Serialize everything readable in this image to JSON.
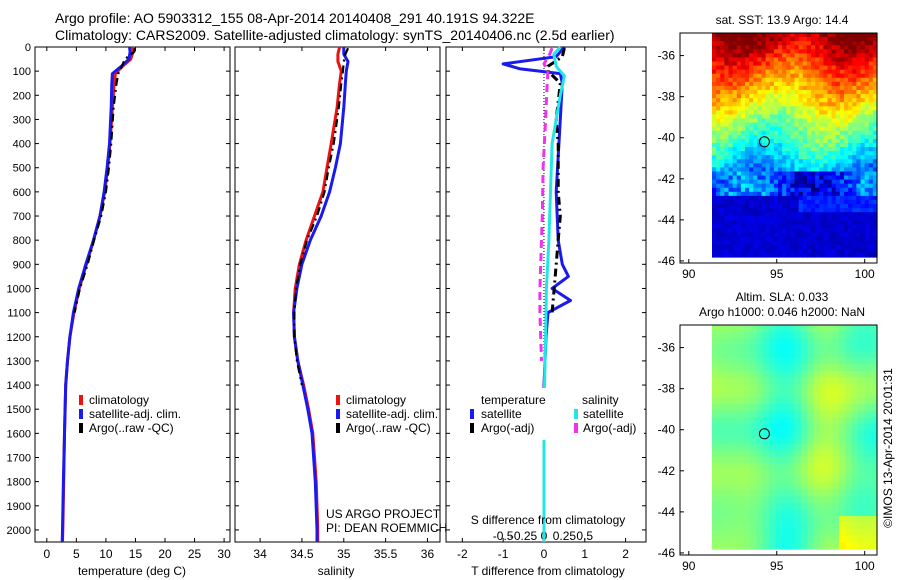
{
  "header": {
    "title_line1": "Argo profile: AO 5903312_155 08-Apr-2014 20140408_291 40.191S 94.322E",
    "title_line2": "Climatology: CARS2009. Satellite-adjusted climatology: synTS_20140406.nc (2.5d earlier)"
  },
  "colors": {
    "climatology": "#ee1111",
    "satellite": "#1a1aee",
    "argo": "#000000",
    "cyan": "#22e6e6",
    "magenta": "#ee33ee"
  },
  "depth_ticks": [
    "0",
    "100",
    "200",
    "300",
    "400",
    "500",
    "600",
    "700",
    "800",
    "900",
    "1000",
    "1100",
    "1200",
    "1300",
    "1400",
    "1500",
    "1600",
    "1700",
    "1800",
    "1900",
    "2000"
  ],
  "chart_data": [
    {
      "type": "line",
      "name": "temperature",
      "xlabel": "temperature (deg C)",
      "xlim": [
        -2,
        31
      ],
      "xticks": [
        0,
        5,
        10,
        15,
        20,
        25,
        30
      ],
      "ylim": [
        2050,
        0
      ],
      "legend": [
        "climatology",
        "satellite-adj. clim.",
        "Argo(..raw -QC)"
      ],
      "series": [
        {
          "name": "climatology",
          "depth": [
            0,
            20,
            50,
            80,
            110,
            150,
            250,
            400,
            500,
            600,
            700,
            800,
            900,
            1000,
            1100,
            1200,
            1300,
            1400,
            1600,
            1800,
            2000,
            2050
          ],
          "values": [
            14.5,
            14.6,
            14.2,
            12.8,
            11.6,
            11.4,
            11.1,
            10.7,
            10.3,
            9.8,
            9.0,
            7.9,
            6.7,
            5.5,
            4.6,
            3.9,
            3.5,
            3.2,
            3.0,
            2.85,
            2.7,
            2.65
          ]
        },
        {
          "name": "satellite-adj. clim.",
          "depth": [
            0,
            20,
            50,
            80,
            110,
            150,
            250,
            400,
            500,
            600,
            700,
            800,
            900,
            1000,
            1100,
            1200,
            1300,
            1400,
            1600,
            1800,
            2000,
            2050
          ],
          "values": [
            14.0,
            14.1,
            13.9,
            12.6,
            11.1,
            11.0,
            10.9,
            10.6,
            10.2,
            9.7,
            9.0,
            7.9,
            6.6,
            5.4,
            4.5,
            3.9,
            3.5,
            3.2,
            3.0,
            2.8,
            2.65,
            2.6
          ]
        },
        {
          "name": "Argo(..raw -QC)",
          "depth": [
            5,
            20,
            50,
            80,
            110,
            150,
            250,
            400,
            500,
            600,
            700,
            800,
            900,
            1000,
            1100
          ],
          "values": [
            14.9,
            14.8,
            13.2,
            12.7,
            12.1,
            11.8,
            11.3,
            10.9,
            10.5,
            10.0,
            9.2,
            8.0,
            6.9,
            5.6,
            4.7
          ]
        }
      ]
    },
    {
      "type": "line",
      "name": "salinity",
      "xlabel": "salinity",
      "xlim": [
        33.7,
        36.15
      ],
      "xticks": [
        34,
        34.5,
        35,
        35.5,
        36
      ],
      "ylim": [
        2050,
        0
      ],
      "legend": [
        "climatology",
        "satellite-adj. clim.",
        "Argo(..raw -QC)"
      ],
      "series": [
        {
          "name": "climatology",
          "depth": [
            0,
            30,
            60,
            100,
            150,
            250,
            400,
            500,
            600,
            700,
            800,
            900,
            1000,
            1100,
            1200,
            1300,
            1400,
            1500,
            1600,
            1800,
            2000,
            2050
          ],
          "values": [
            34.95,
            34.93,
            34.93,
            34.97,
            34.95,
            34.92,
            34.85,
            34.8,
            34.75,
            34.65,
            34.55,
            34.47,
            34.42,
            34.4,
            34.41,
            34.45,
            34.52,
            34.58,
            34.63,
            34.67,
            34.69,
            34.69
          ]
        },
        {
          "name": "satellite-adj. clim.",
          "depth": [
            0,
            30,
            60,
            100,
            150,
            250,
            400,
            500,
            600,
            700,
            800,
            900,
            1000,
            1100,
            1200,
            1300,
            1400,
            1500,
            1600,
            1800,
            2000,
            2050
          ],
          "values": [
            35.0,
            35.0,
            35.05,
            35.03,
            35.02,
            35.0,
            34.96,
            34.9,
            34.83,
            34.73,
            34.6,
            34.5,
            34.44,
            34.4,
            34.41,
            34.45,
            34.51,
            34.57,
            34.62,
            34.66,
            34.68,
            34.68
          ]
        },
        {
          "name": "Argo(..raw -QC)",
          "depth": [
            5,
            30,
            60,
            100,
            150,
            250,
            400,
            500,
            600,
            700,
            800,
            900,
            1000,
            1100,
            1200,
            1300,
            1400
          ],
          "values": [
            35.05,
            35.02,
            35.0,
            34.99,
            34.97,
            34.94,
            34.88,
            34.82,
            34.77,
            34.68,
            34.56,
            34.48,
            34.43,
            34.41,
            34.41,
            34.44,
            34.5
          ]
        }
      ]
    },
    {
      "type": "line",
      "name": "difference from climatology",
      "xlabel": "T difference from climatology",
      "xlabel_top": "S difference from climatology",
      "xlim": [
        -2.4,
        2.5
      ],
      "xticks": [
        -2,
        -1,
        0,
        1,
        2
      ],
      "xticks_labels": [
        "-2",
        "-1",
        "0",
        "1",
        "2"
      ],
      "s_ticks": [
        -0.5,
        -0.25,
        0,
        0.25,
        0.5
      ],
      "s_ticks_labels": [
        "-0.5",
        "-0.25",
        "0",
        "0.25",
        "0.5"
      ],
      "ylim": [
        2050,
        0
      ],
      "legend_temperature": "temperature",
      "legend_salinity": "salinity",
      "legend_satellite": "satellite",
      "legend_argo": "Argo(-adj)",
      "series": [
        {
          "name": "temperature satellite",
          "depth": [
            0,
            40,
            70,
            90,
            110,
            150,
            300,
            600,
            800,
            900,
            950,
            1000,
            1050,
            1100,
            1200,
            1400,
            1700,
            2000,
            2050
          ],
          "values": [
            0.5,
            0.3,
            -1.0,
            -0.6,
            0.4,
            0.45,
            0.4,
            0.3,
            0.35,
            0.45,
            0.6,
            0.2,
            0.65,
            0.1,
            0.05,
            0.0,
            0.0,
            0.0,
            0.0
          ]
        },
        {
          "name": "temperature Argo(-adj)",
          "depth": [
            5,
            40,
            80,
            100,
            150,
            300,
            400,
            600,
            700,
            800,
            900,
            1000,
            1100
          ],
          "values": [
            0.5,
            0.45,
            0.1,
            0.1,
            0.4,
            0.3,
            0.35,
            0.35,
            0.4,
            0.35,
            0.3,
            0.25,
            0.2
          ]
        },
        {
          "name": "salinity satellite",
          "depth": [
            0,
            30,
            80,
            120,
            200,
            400,
            600,
            800,
            1000,
            1200,
            1500,
            1800,
            2000,
            2050
          ],
          "values": [
            0.2,
            0.12,
            0.15,
            0.25,
            0.2,
            0.1,
            0.08,
            0.06,
            0.03,
            0.02,
            0.0,
            0.0,
            0.0,
            0.0
          ]
        },
        {
          "name": "salinity Argo(-adj)",
          "depth": [
            5,
            30,
            70,
            100,
            150,
            300,
            500,
            700,
            900,
            1000,
            1100,
            1200,
            1300
          ],
          "values": [
            0.1,
            0.07,
            0.0,
            0.05,
            0.04,
            0.02,
            -0.01,
            -0.02,
            -0.04,
            -0.05,
            -0.05,
            -0.04,
            -0.03
          ]
        }
      ]
    },
    {
      "type": "heatmap",
      "name": "sst map",
      "title": "sat. SST: 13.9 Argo: 14.4",
      "xlim": [
        89.5,
        100.7
      ],
      "ylim": [
        -46.1,
        -34.9
      ],
      "xticks": [
        90,
        95,
        100
      ],
      "yticks": [
        -36,
        -38,
        -40,
        -42,
        -44,
        -46
      ],
      "marker": {
        "lon": 94.3,
        "lat": -40.2
      }
    },
    {
      "type": "heatmap",
      "name": "sla map",
      "title_line1": "Altim. SLA: 0.033",
      "title_line2": "Argo h1000: 0.046 h2000: NaN",
      "xlim": [
        89.5,
        100.7
      ],
      "ylim": [
        -46.1,
        -34.9
      ],
      "xticks": [
        90,
        95,
        100
      ],
      "yticks": [
        -36,
        -38,
        -40,
        -42,
        -44,
        -46
      ],
      "marker": {
        "lon": 94.3,
        "lat": -40.2
      }
    }
  ],
  "footer": {
    "project_line1": "US ARGO PROJECT",
    "project_line2": "PI: DEAN ROEMMICH",
    "side_stamp": "©IMOS 13-Apr-2014 20:01:31"
  }
}
